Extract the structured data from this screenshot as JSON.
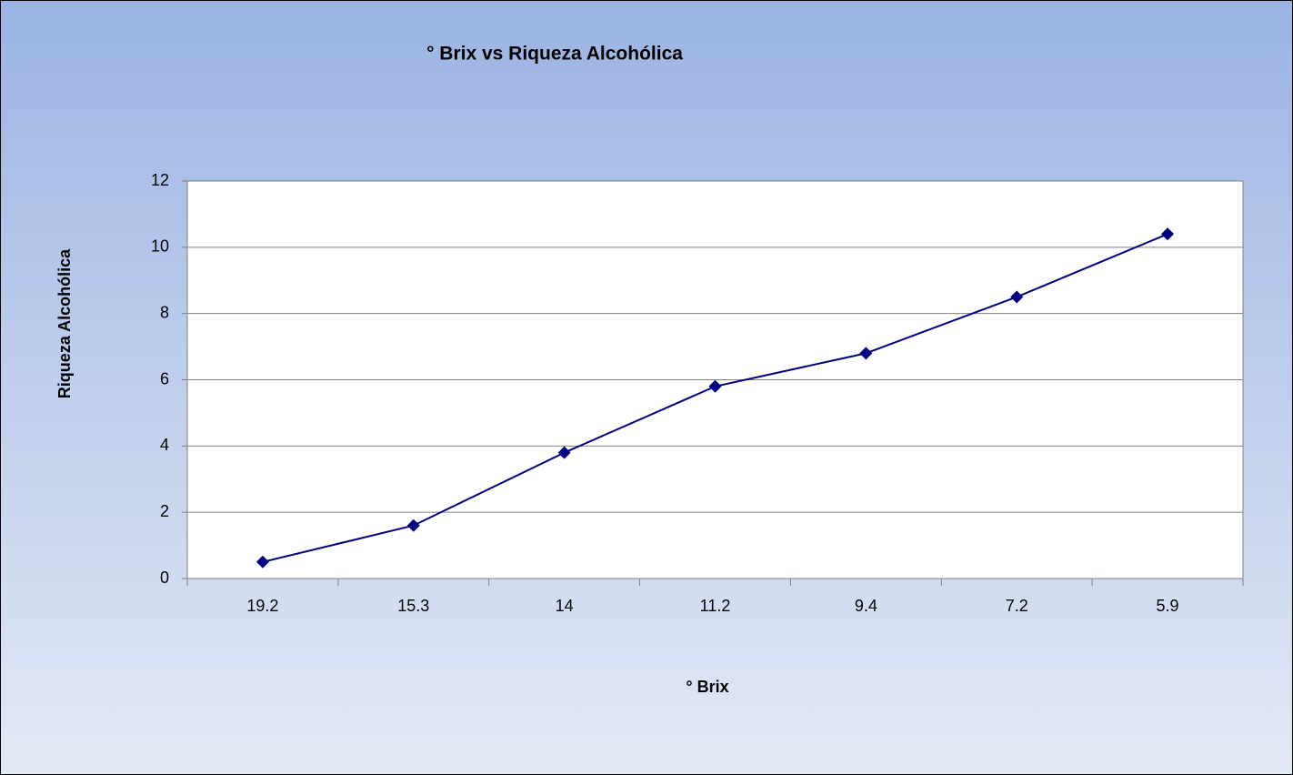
{
  "chart_data": {
    "type": "line",
    "title": "° Brix vs Riqueza Alcohólica",
    "xlabel": "° Brix",
    "ylabel": "Riqueza Alcohólica",
    "categories": [
      "19.2",
      "15.3",
      "14",
      "11.2",
      "9.4",
      "7.2",
      "5.9"
    ],
    "values": [
      0.5,
      1.6,
      3.8,
      5.8,
      6.8,
      8.5,
      10.4
    ],
    "color": "#000080",
    "marker": "diamond",
    "ylim": [
      0,
      12
    ],
    "yticks": [
      0,
      2,
      4,
      6,
      8,
      10,
      12
    ],
    "grid": true
  }
}
